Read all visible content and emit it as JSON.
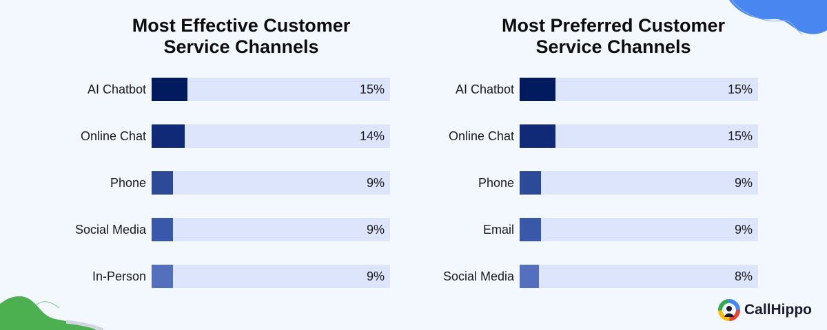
{
  "charts": [
    {
      "title": "Most Effective Customer\nService Channels",
      "colors": [
        "#011b5e",
        "#102a78",
        "#2c4a98",
        "#3a58aa",
        "#5470bd"
      ]
    },
    {
      "title": "Most Preferred Customer\nService Channels",
      "colors": [
        "#011b5e",
        "#102a78",
        "#2c4a98",
        "#3a58aa",
        "#5470bd"
      ]
    }
  ],
  "chart_data": [
    {
      "type": "bar",
      "title": "Most Effective Customer Service Channels",
      "categories": [
        "AI Chatbot",
        "Online Chat",
        "Phone",
        "Social Media",
        "In-Person"
      ],
      "values": [
        15,
        14,
        9,
        9,
        9
      ],
      "value_labels": [
        "15%",
        "14%",
        "9%",
        "9%",
        "9%"
      ],
      "unit": "%",
      "orientation": "horizontal",
      "xlim": [
        0,
        100
      ]
    },
    {
      "type": "bar",
      "title": "Most Preferred Customer Service Channels",
      "categories": [
        "AI Chatbot",
        "Online Chat",
        "Phone",
        "Email",
        "Social Media"
      ],
      "values": [
        15,
        15,
        9,
        9,
        8
      ],
      "value_labels": [
        "15%",
        "15%",
        "9%",
        "9%",
        "8%"
      ],
      "unit": "%",
      "orientation": "horizontal",
      "xlim": [
        0,
        100
      ]
    }
  ],
  "brand": {
    "name": "CallHippo",
    "logo_icon": "callhippo-logo-icon",
    "colors": {
      "track": "#dde5fc",
      "background": "#f3f7fe",
      "green_blob": "#4caf50",
      "blue_blob": "#4a86f0"
    }
  }
}
